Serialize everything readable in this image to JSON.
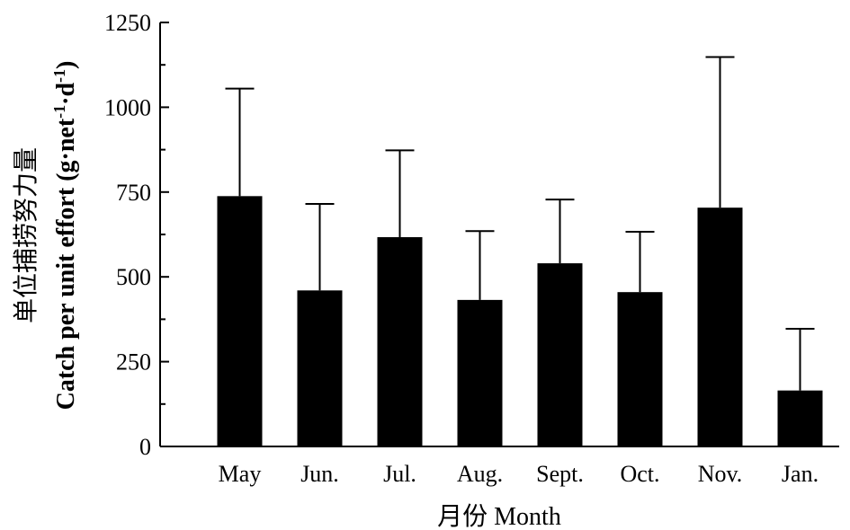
{
  "chart_data": {
    "type": "bar",
    "categories": [
      "May",
      "Jun.",
      "Jul.",
      "Aug.",
      "Sept.",
      "Oct.",
      "Nov.",
      "Jan."
    ],
    "values": [
      738,
      460,
      617,
      432,
      540,
      455,
      704,
      165
    ],
    "error_upper": [
      1055,
      715,
      873,
      635,
      728,
      633,
      1148,
      347
    ],
    "xlabel": "月份 Month",
    "ylabel_cn": "单位捕捞努力量",
    "ylabel_en_main": "Catch per unit effort (g·net",
    "ylabel_en_sup1": "-1",
    "ylabel_en_mid": "·d",
    "ylabel_en_sup2": "-1",
    "ylabel_en_end": ")",
    "ylim": [
      0,
      1250
    ],
    "yticks": [
      0,
      250,
      500,
      750,
      1000,
      1250
    ],
    "ytick_labels": [
      "0",
      "250",
      "500",
      "750",
      "1000",
      "1250"
    ],
    "bar_color": "#000000",
    "grid": false,
    "legend": "none"
  }
}
